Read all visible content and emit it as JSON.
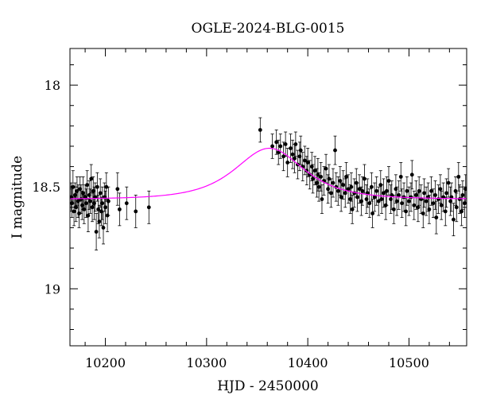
{
  "chart_data": {
    "type": "scatter",
    "title": "OGLE-2024-BLG-0015",
    "xlabel": "HJD - 2450000",
    "ylabel": "I magnitude",
    "xlim": [
      10165,
      10557
    ],
    "ylim": [
      19.28,
      17.82
    ],
    "y_inverted": true,
    "grid": false,
    "x_ticks": [
      10200,
      10300,
      10400,
      10500
    ],
    "x_tick_labels": [
      "10200",
      "10300",
      "10400",
      "10500"
    ],
    "y_ticks": [
      18,
      18.5,
      19
    ],
    "y_tick_labels": [
      "18",
      "18.5",
      "19"
    ],
    "model": {
      "color": "#ff00ff",
      "baseline_mag": 18.56,
      "peak_mag": 18.31,
      "t0": 10362,
      "tE": 38
    },
    "series": [
      {
        "marker_color": "#000000",
        "points": [
          [
            10166,
            18.55,
            0.07
          ],
          [
            10167,
            18.58,
            0.07
          ],
          [
            10168,
            18.5,
            0.08
          ],
          [
            10169,
            18.62,
            0.07
          ],
          [
            10170,
            18.54,
            0.06
          ],
          [
            10171,
            18.6,
            0.07
          ],
          [
            10172,
            18.52,
            0.07
          ],
          [
            10173,
            18.57,
            0.08
          ],
          [
            10174,
            18.63,
            0.07
          ],
          [
            10175,
            18.51,
            0.06
          ],
          [
            10176,
            18.56,
            0.07
          ],
          [
            10177,
            18.59,
            0.07
          ],
          [
            10178,
            18.53,
            0.08
          ],
          [
            10179,
            18.61,
            0.07
          ],
          [
            10180,
            18.55,
            0.06
          ],
          [
            10181,
            18.58,
            0.07
          ],
          [
            10182,
            18.49,
            0.07
          ],
          [
            10183,
            18.64,
            0.08
          ],
          [
            10184,
            18.54,
            0.07
          ],
          [
            10185,
            18.57,
            0.06
          ],
          [
            10186,
            18.46,
            0.07
          ],
          [
            10187,
            18.6,
            0.07
          ],
          [
            10188,
            18.52,
            0.07
          ],
          [
            10189,
            18.58,
            0.08
          ],
          [
            10190,
            18.55,
            0.07
          ],
          [
            10191,
            18.72,
            0.09
          ],
          [
            10192,
            18.5,
            0.07
          ],
          [
            10193,
            18.61,
            0.07
          ],
          [
            10194,
            18.67,
            0.08
          ],
          [
            10195,
            18.53,
            0.07
          ],
          [
            10196,
            18.62,
            0.07
          ],
          [
            10197,
            18.58,
            0.08
          ],
          [
            10198,
            18.7,
            0.08
          ],
          [
            10199,
            18.55,
            0.07
          ],
          [
            10200,
            18.6,
            0.08
          ],
          [
            10201,
            18.5,
            0.07
          ],
          [
            10202,
            18.64,
            0.08
          ],
          [
            10203,
            18.57,
            0.07
          ],
          [
            10212,
            18.51,
            0.08
          ],
          [
            10214,
            18.61,
            0.08
          ],
          [
            10221,
            18.58,
            0.08
          ],
          [
            10230,
            18.62,
            0.08
          ],
          [
            10243,
            18.6,
            0.08
          ],
          [
            10353,
            18.22,
            0.06
          ],
          [
            10365,
            18.3,
            0.06
          ],
          [
            10369,
            18.28,
            0.06
          ],
          [
            10371,
            18.33,
            0.06
          ],
          [
            10373,
            18.3,
            0.06
          ],
          [
            10376,
            18.35,
            0.07
          ],
          [
            10378,
            18.29,
            0.06
          ],
          [
            10380,
            18.38,
            0.07
          ],
          [
            10383,
            18.31,
            0.07
          ],
          [
            10385,
            18.34,
            0.07
          ],
          [
            10387,
            18.36,
            0.07
          ],
          [
            10388,
            18.29,
            0.06
          ],
          [
            10390,
            18.39,
            0.07
          ],
          [
            10392,
            18.35,
            0.07
          ],
          [
            10393,
            18.32,
            0.07
          ],
          [
            10395,
            18.4,
            0.07
          ],
          [
            10397,
            18.37,
            0.07
          ],
          [
            10399,
            18.42,
            0.07
          ],
          [
            10400,
            18.38,
            0.07
          ],
          [
            10402,
            18.44,
            0.07
          ],
          [
            10404,
            18.4,
            0.07
          ],
          [
            10405,
            18.46,
            0.07
          ],
          [
            10407,
            18.42,
            0.07
          ],
          [
            10409,
            18.48,
            0.07
          ],
          [
            10410,
            18.44,
            0.08
          ],
          [
            10411,
            18.5,
            0.07
          ],
          [
            10413,
            18.45,
            0.07
          ],
          [
            10414,
            18.56,
            0.07
          ],
          [
            10416,
            18.47,
            0.07
          ],
          [
            10418,
            18.41,
            0.07
          ],
          [
            10420,
            18.51,
            0.07
          ],
          [
            10421,
            18.46,
            0.07
          ],
          [
            10423,
            18.53,
            0.07
          ],
          [
            10425,
            18.48,
            0.07
          ],
          [
            10427,
            18.32,
            0.07
          ],
          [
            10428,
            18.5,
            0.07
          ],
          [
            10430,
            18.52,
            0.07
          ],
          [
            10432,
            18.47,
            0.07
          ],
          [
            10433,
            18.55,
            0.07
          ],
          [
            10435,
            18.49,
            0.07
          ],
          [
            10437,
            18.53,
            0.07
          ],
          [
            10438,
            18.45,
            0.07
          ],
          [
            10440,
            18.51,
            0.07
          ],
          [
            10442,
            18.56,
            0.07
          ],
          [
            10443,
            18.5,
            0.07
          ],
          [
            10444,
            18.61,
            0.07
          ],
          [
            10446,
            18.53,
            0.07
          ],
          [
            10448,
            18.48,
            0.07
          ],
          [
            10449,
            18.55,
            0.07
          ],
          [
            10451,
            18.51,
            0.07
          ],
          [
            10453,
            18.57,
            0.07
          ],
          [
            10454,
            18.52,
            0.07
          ],
          [
            10456,
            18.46,
            0.07
          ],
          [
            10458,
            18.56,
            0.07
          ],
          [
            10459,
            18.53,
            0.07
          ],
          [
            10461,
            18.58,
            0.07
          ],
          [
            10463,
            18.5,
            0.07
          ],
          [
            10464,
            18.63,
            0.07
          ],
          [
            10466,
            18.55,
            0.07
          ],
          [
            10468,
            18.52,
            0.07
          ],
          [
            10470,
            18.57,
            0.07
          ],
          [
            10472,
            18.49,
            0.07
          ],
          [
            10473,
            18.56,
            0.07
          ],
          [
            10475,
            18.53,
            0.07
          ],
          [
            10477,
            18.59,
            0.07
          ],
          [
            10478,
            18.52,
            0.07
          ],
          [
            10480,
            18.47,
            0.07
          ],
          [
            10482,
            18.56,
            0.07
          ],
          [
            10483,
            18.54,
            0.07
          ],
          [
            10485,
            18.61,
            0.07
          ],
          [
            10487,
            18.51,
            0.07
          ],
          [
            10488,
            18.57,
            0.07
          ],
          [
            10490,
            18.54,
            0.07
          ],
          [
            10492,
            18.45,
            0.07
          ],
          [
            10493,
            18.58,
            0.07
          ],
          [
            10495,
            18.55,
            0.07
          ],
          [
            10497,
            18.62,
            0.07
          ],
          [
            10498,
            18.52,
            0.07
          ],
          [
            10500,
            18.57,
            0.07
          ],
          [
            10502,
            18.55,
            0.07
          ],
          [
            10503,
            18.44,
            0.07
          ],
          [
            10505,
            18.59,
            0.07
          ],
          [
            10507,
            18.54,
            0.07
          ],
          [
            10509,
            18.6,
            0.07
          ],
          [
            10510,
            18.52,
            0.07
          ],
          [
            10512,
            18.56,
            0.07
          ],
          [
            10514,
            18.63,
            0.07
          ],
          [
            10515,
            18.53,
            0.07
          ],
          [
            10517,
            18.57,
            0.07
          ],
          [
            10519,
            18.55,
            0.07
          ],
          [
            10520,
            18.61,
            0.07
          ],
          [
            10522,
            18.52,
            0.07
          ],
          [
            10524,
            18.58,
            0.07
          ],
          [
            10526,
            18.54,
            0.07
          ],
          [
            10527,
            18.65,
            0.08
          ],
          [
            10529,
            18.56,
            0.07
          ],
          [
            10531,
            18.51,
            0.07
          ],
          [
            10532,
            18.59,
            0.07
          ],
          [
            10534,
            18.55,
            0.07
          ],
          [
            10536,
            18.62,
            0.07
          ],
          [
            10537,
            18.53,
            0.07
          ],
          [
            10539,
            18.48,
            0.07
          ],
          [
            10541,
            18.57,
            0.07
          ],
          [
            10542,
            18.55,
            0.07
          ],
          [
            10544,
            18.66,
            0.08
          ],
          [
            10546,
            18.52,
            0.07
          ],
          [
            10547,
            18.6,
            0.07
          ],
          [
            10549,
            18.45,
            0.07
          ],
          [
            10550,
            18.56,
            0.07
          ],
          [
            10552,
            18.62,
            0.07
          ],
          [
            10553,
            18.54,
            0.07
          ],
          [
            10555,
            18.58,
            0.07
          ],
          [
            10556,
            18.51,
            0.07
          ]
        ]
      }
    ]
  }
}
